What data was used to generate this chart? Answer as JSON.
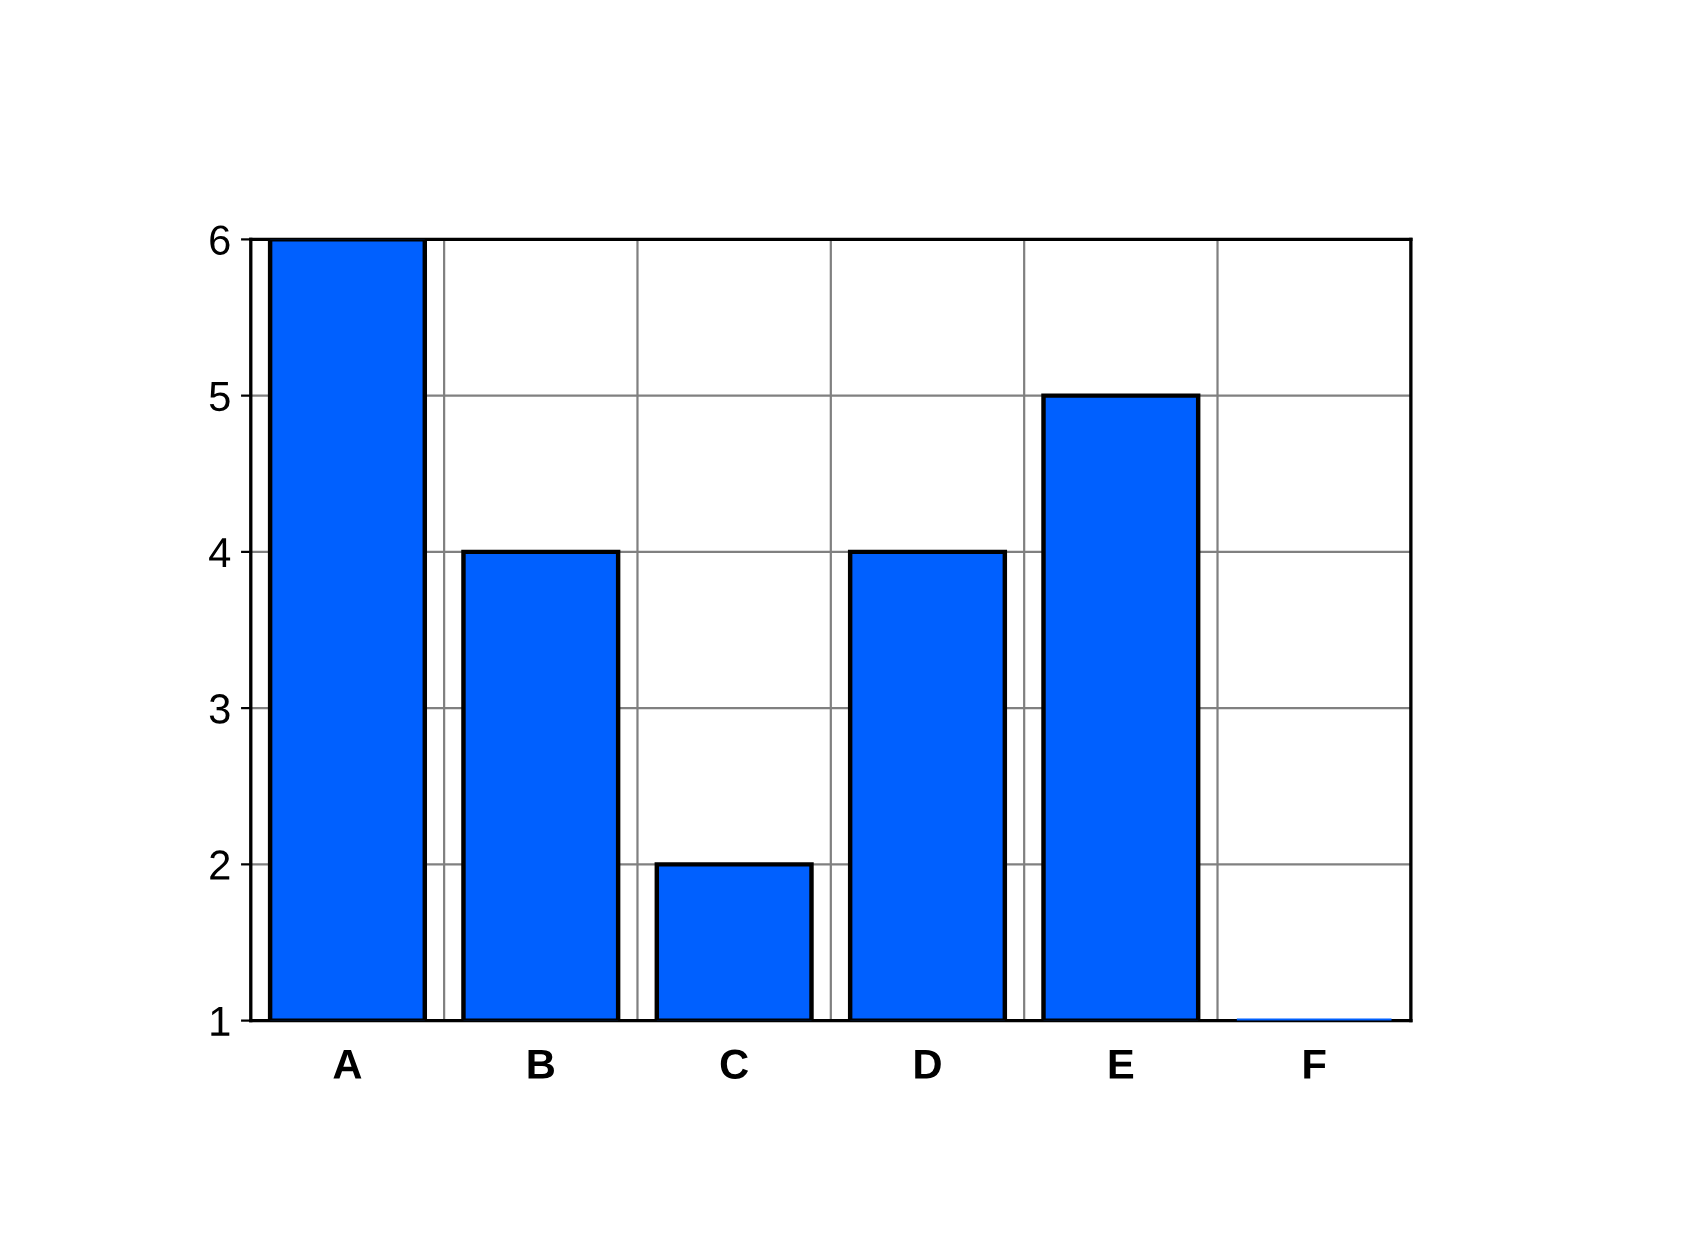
{
  "chart_data": {
    "type": "bar",
    "categories": [
      "A",
      "B",
      "C",
      "D",
      "E",
      "F"
    ],
    "values": [
      6,
      4,
      2,
      4,
      5,
      1
    ],
    "color": "#0060ff",
    "ylim": [
      1,
      6
    ],
    "yticks": [
      1,
      2,
      3,
      4,
      5,
      6
    ],
    "grid": true
  }
}
